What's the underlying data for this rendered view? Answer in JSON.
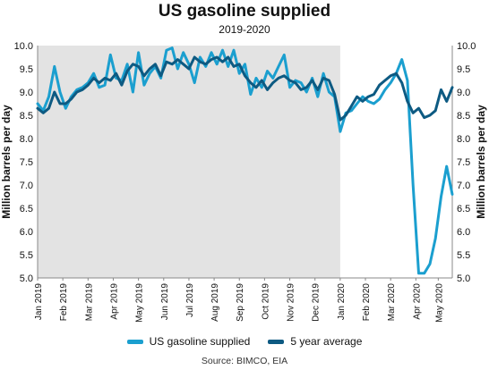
{
  "chart_data": {
    "type": "line",
    "title": "US gasoline supplied",
    "subtitle": "2019-2020",
    "ylabel_left": "Million barrels per day",
    "ylabel_right": "Million barrels per day",
    "ylim": [
      5.0,
      10.0
    ],
    "yticks": [
      "5.0",
      "5.5",
      "6.0",
      "6.5",
      "7.0",
      "7.5",
      "8.0",
      "8.5",
      "9.0",
      "9.5",
      "10.0"
    ],
    "xlim": [
      0,
      72
    ],
    "xticks": [
      {
        "label": "Jan 2019",
        "x": 0
      },
      {
        "label": "Feb 2019",
        "x": 4.5
      },
      {
        "label": "Mar 2019",
        "x": 9
      },
      {
        "label": "Apr 2019",
        "x": 13.5
      },
      {
        "label": "May 2019",
        "x": 18
      },
      {
        "label": "Jun 2019",
        "x": 22.5
      },
      {
        "label": "Jul 2019",
        "x": 27
      },
      {
        "label": "Aug 2019",
        "x": 31.5
      },
      {
        "label": "Sep 2019",
        "x": 36
      },
      {
        "label": "Oct 2019",
        "x": 40.5
      },
      {
        "label": "Nov 2019",
        "x": 45
      },
      {
        "label": "Dec 2019",
        "x": 49.5
      },
      {
        "label": "Jan 2020",
        "x": 54
      },
      {
        "label": "Feb 2020",
        "x": 58.5
      },
      {
        "label": "Mar 2020",
        "x": 63
      },
      {
        "label": "Apr 2020",
        "x": 67.5
      },
      {
        "label": "May 2020",
        "x": 71.5
      }
    ],
    "shaded_range": [
      0,
      54
    ],
    "legend_position": "bottom",
    "series": [
      {
        "name": "US gasoline supplied",
        "color": "#1b9fcf",
        "values": [
          [
            0,
            8.75
          ],
          [
            1,
            8.6
          ],
          [
            2,
            8.9
          ],
          [
            3,
            9.55
          ],
          [
            4,
            9.0
          ],
          [
            5,
            8.65
          ],
          [
            6,
            8.9
          ],
          [
            7,
            9.05
          ],
          [
            8,
            9.1
          ],
          [
            9,
            9.2
          ],
          [
            10,
            9.4
          ],
          [
            11,
            9.1
          ],
          [
            12,
            9.15
          ],
          [
            13,
            9.8
          ],
          [
            14,
            9.3
          ],
          [
            15,
            9.25
          ],
          [
            16,
            9.6
          ],
          [
            17,
            9.0
          ],
          [
            18,
            9.85
          ],
          [
            19,
            9.15
          ],
          [
            20,
            9.4
          ],
          [
            21,
            9.55
          ],
          [
            22,
            9.3
          ],
          [
            23,
            9.9
          ],
          [
            24,
            9.95
          ],
          [
            25,
            9.5
          ],
          [
            26,
            9.85
          ],
          [
            27,
            9.6
          ],
          [
            28,
            9.2
          ],
          [
            29,
            9.75
          ],
          [
            30,
            9.55
          ],
          [
            31,
            9.85
          ],
          [
            32,
            9.6
          ],
          [
            33,
            9.9
          ],
          [
            34,
            9.55
          ],
          [
            35,
            9.9
          ],
          [
            36,
            9.4
          ],
          [
            37,
            9.6
          ],
          [
            38,
            8.95
          ],
          [
            39,
            9.3
          ],
          [
            40,
            9.1
          ],
          [
            41,
            9.45
          ],
          [
            42,
            9.3
          ],
          [
            43,
            9.55
          ],
          [
            44,
            9.8
          ],
          [
            45,
            9.1
          ],
          [
            46,
            9.25
          ],
          [
            47,
            9.2
          ],
          [
            48,
            9.0
          ],
          [
            49,
            9.3
          ],
          [
            50,
            8.9
          ],
          [
            51,
            9.4
          ],
          [
            52,
            9.0
          ],
          [
            53,
            8.9
          ],
          [
            54,
            8.15
          ],
          [
            55,
            8.55
          ],
          [
            56,
            8.6
          ],
          [
            57,
            8.75
          ],
          [
            58,
            8.9
          ],
          [
            59,
            8.8
          ],
          [
            60,
            8.75
          ],
          [
            61,
            8.85
          ],
          [
            62,
            9.05
          ],
          [
            63,
            9.2
          ],
          [
            64,
            9.4
          ],
          [
            65,
            9.7
          ],
          [
            66,
            9.25
          ],
          [
            67,
            7.0
          ],
          [
            68,
            5.1
          ],
          [
            69,
            5.1
          ],
          [
            70,
            5.3
          ],
          [
            71,
            5.85
          ],
          [
            72,
            6.75
          ],
          [
            73,
            7.4
          ],
          [
            74,
            6.8
          ]
        ]
      },
      {
        "name": "5 year average",
        "color": "#0d5a82",
        "values": [
          [
            0,
            8.65
          ],
          [
            1,
            8.55
          ],
          [
            2,
            8.65
          ],
          [
            3,
            9.0
          ],
          [
            4,
            8.75
          ],
          [
            5,
            8.75
          ],
          [
            6,
            8.85
          ],
          [
            7,
            9.0
          ],
          [
            8,
            9.05
          ],
          [
            9,
            9.15
          ],
          [
            10,
            9.3
          ],
          [
            11,
            9.2
          ],
          [
            12,
            9.3
          ],
          [
            13,
            9.25
          ],
          [
            14,
            9.4
          ],
          [
            15,
            9.15
          ],
          [
            16,
            9.45
          ],
          [
            17,
            9.6
          ],
          [
            18,
            9.55
          ],
          [
            19,
            9.35
          ],
          [
            20,
            9.5
          ],
          [
            21,
            9.6
          ],
          [
            22,
            9.35
          ],
          [
            23,
            9.65
          ],
          [
            24,
            9.6
          ],
          [
            25,
            9.7
          ],
          [
            26,
            9.6
          ],
          [
            27,
            9.5
          ],
          [
            28,
            9.75
          ],
          [
            29,
            9.65
          ],
          [
            30,
            9.6
          ],
          [
            31,
            9.7
          ],
          [
            32,
            9.75
          ],
          [
            33,
            9.65
          ],
          [
            34,
            9.75
          ],
          [
            35,
            9.55
          ],
          [
            36,
            9.6
          ],
          [
            37,
            9.35
          ],
          [
            38,
            9.2
          ],
          [
            39,
            9.1
          ],
          [
            40,
            9.25
          ],
          [
            41,
            9.05
          ],
          [
            42,
            9.2
          ],
          [
            43,
            9.3
          ],
          [
            44,
            9.35
          ],
          [
            45,
            9.25
          ],
          [
            46,
            9.2
          ],
          [
            47,
            9.05
          ],
          [
            48,
            9.1
          ],
          [
            49,
            9.25
          ],
          [
            50,
            9.05
          ],
          [
            51,
            9.3
          ],
          [
            52,
            9.25
          ],
          [
            53,
            8.95
          ],
          [
            54,
            8.4
          ],
          [
            55,
            8.5
          ],
          [
            56,
            8.7
          ],
          [
            57,
            8.9
          ],
          [
            58,
            8.8
          ],
          [
            59,
            8.9
          ],
          [
            60,
            8.95
          ],
          [
            61,
            9.15
          ],
          [
            62,
            9.25
          ],
          [
            63,
            9.35
          ],
          [
            64,
            9.4
          ],
          [
            65,
            9.2
          ],
          [
            66,
            8.8
          ],
          [
            67,
            8.55
          ],
          [
            68,
            8.65
          ],
          [
            69,
            8.45
          ],
          [
            70,
            8.5
          ],
          [
            71,
            8.6
          ],
          [
            72,
            9.05
          ],
          [
            73,
            8.8
          ],
          [
            74,
            9.1
          ]
        ]
      }
    ]
  },
  "source_text": "Source: BIMCO, EIA"
}
